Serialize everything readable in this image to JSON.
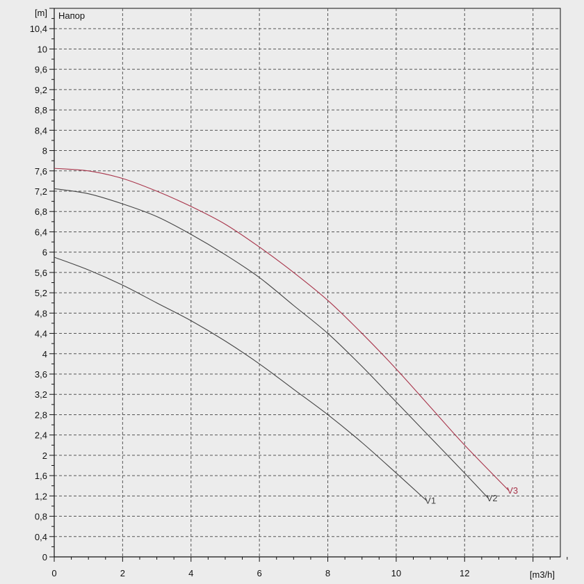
{
  "chart_data": {
    "type": "line",
    "title": "Напор",
    "ylabel": "[m]",
    "xlabel": "[m3/h]",
    "xlim": [
      0,
      14.8
    ],
    "ylim": [
      0,
      10.8
    ],
    "x_ticks": [
      0,
      2,
      4,
      6,
      8,
      10,
      12
    ],
    "x_tick_labels": [
      "0",
      "2",
      "4",
      "6",
      "8",
      "10",
      "12"
    ],
    "y_ticks": [
      0,
      0.4,
      0.8,
      1.2,
      1.6,
      2,
      2.4,
      2.8,
      3.2,
      3.6,
      4,
      4.4,
      4.8,
      5.2,
      5.6,
      6,
      6.4,
      6.8,
      7.2,
      7.6,
      8,
      8.4,
      8.8,
      9.2,
      9.6,
      10,
      10.4
    ],
    "y_tick_labels": [
      "0",
      "0,4",
      "0,8",
      "1,2",
      "1,6",
      "2",
      "2,4",
      "2,8",
      "3,2",
      "3,6",
      "4",
      "4,4",
      "4,8",
      "5,2",
      "5,6",
      "6",
      "6,4",
      "6,8",
      "7,2",
      "7,6",
      "8",
      "8,4",
      "8,8",
      "9,2",
      "9,6",
      "10",
      "10,4"
    ],
    "grid": true,
    "series": [
      {
        "name": "V1",
        "color": "#444444",
        "x": [
          0,
          1,
          2,
          3,
          4,
          5,
          6,
          7,
          8,
          9,
          10,
          10.9
        ],
        "y": [
          5.9,
          5.65,
          5.35,
          5.0,
          4.65,
          4.25,
          3.8,
          3.3,
          2.8,
          2.25,
          1.65,
          1.1
        ]
      },
      {
        "name": "V2",
        "color": "#444444",
        "x": [
          0,
          1,
          2,
          3,
          4,
          5,
          6,
          7,
          8,
          9,
          10,
          11,
          12,
          12.7
        ],
        "y": [
          7.25,
          7.15,
          6.95,
          6.7,
          6.35,
          5.95,
          5.5,
          4.95,
          4.4,
          3.75,
          3.05,
          2.35,
          1.65,
          1.15
        ]
      },
      {
        "name": "V3",
        "color": "#a8344a",
        "x": [
          0,
          1,
          2,
          3,
          4,
          5,
          6,
          7,
          8,
          9,
          10,
          11,
          12,
          13.3
        ],
        "y": [
          7.65,
          7.6,
          7.45,
          7.2,
          6.9,
          6.55,
          6.1,
          5.6,
          5.05,
          4.4,
          3.7,
          2.95,
          2.2,
          1.3
        ]
      }
    ]
  }
}
